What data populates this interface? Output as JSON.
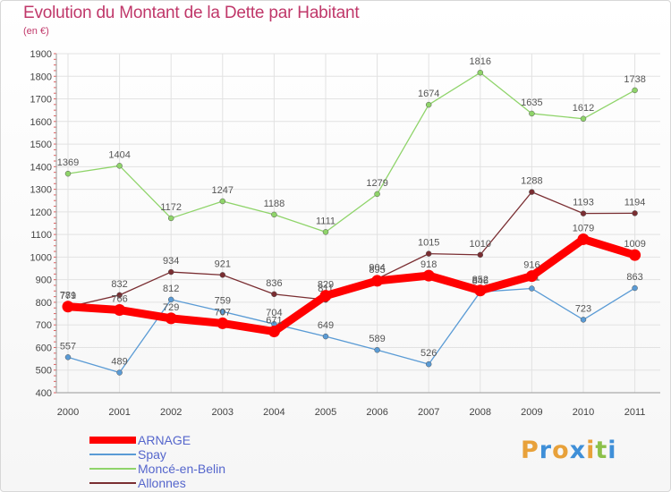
{
  "chart_data": {
    "type": "line",
    "title": "Evolution du Montant de la Dette par Habitant",
    "subtitle": "(en €)",
    "xlabel": "",
    "ylabel": "",
    "categories": [
      "2000",
      "2001",
      "2002",
      "2003",
      "2004",
      "2005",
      "2006",
      "2007",
      "2008",
      "2009",
      "2010",
      "2011"
    ],
    "ylim": [
      400,
      1900
    ],
    "yticks": [
      400,
      500,
      600,
      700,
      800,
      900,
      1000,
      1100,
      1200,
      1300,
      1400,
      1500,
      1600,
      1700,
      1800,
      1900
    ],
    "grid": true,
    "legend_position": "bottom-left",
    "series": [
      {
        "name": "Spay",
        "color": "#5a9bd5",
        "values": [
          557,
          489,
          812,
          759,
          704,
          649,
          589,
          526,
          846,
          861,
          723,
          863
        ]
      },
      {
        "name": "Moncé-en-Belin",
        "color": "#8fd46a",
        "values": [
          1369,
          1404,
          1172,
          1247,
          1188,
          1111,
          1279,
          1674,
          1816,
          1635,
          1612,
          1738
        ]
      },
      {
        "name": "Allonnes",
        "color": "#7a2e32",
        "values": [
          779,
          832,
          934,
          921,
          836,
          811,
          904,
          1015,
          1010,
          1288,
          1193,
          1194
        ]
      },
      {
        "name": "ARNAGE",
        "color": "#ff0000",
        "values": [
          781,
          766,
          729,
          707,
          671,
          829,
          895,
          918,
          852,
          916,
          1079,
          1009
        ]
      }
    ],
    "legend_order": [
      "ARNAGE",
      "Spay",
      "Moncé-en-Belin",
      "Allonnes"
    ]
  },
  "brand": {
    "letters": [
      "P",
      "r",
      "o",
      "x",
      "i",
      "t",
      "i"
    ]
  }
}
